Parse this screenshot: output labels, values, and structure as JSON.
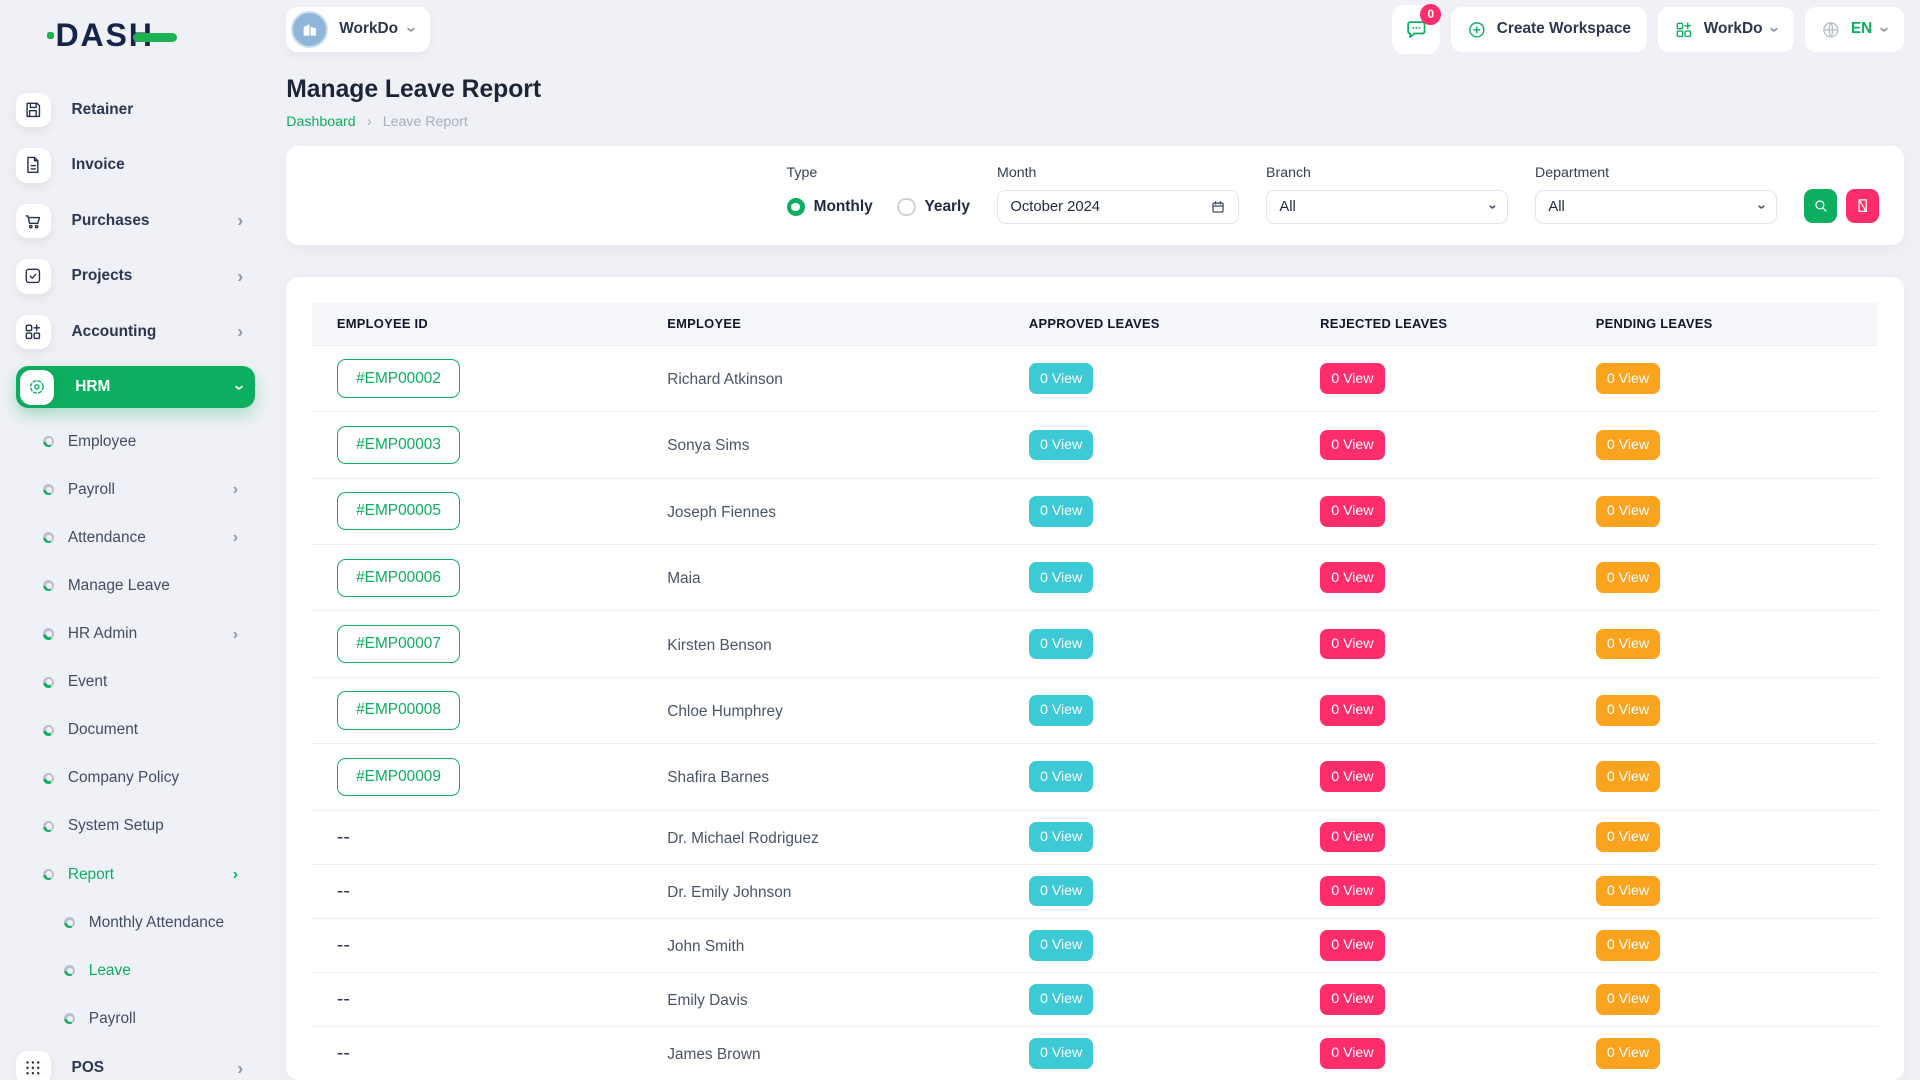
{
  "brand": {
    "logo_text": "DASH"
  },
  "topbar": {
    "workspace_label": "WorkDo",
    "messages_badge": "0",
    "create_workspace_label": "Create Workspace",
    "workdo_label": "WorkDo",
    "language": "EN"
  },
  "sidebar": {
    "main_items": [
      {
        "label": "Retainer",
        "icon": "save-icon",
        "chevron": false,
        "active": false
      },
      {
        "label": "Invoice",
        "icon": "invoice-icon",
        "chevron": false,
        "active": false
      },
      {
        "label": "Purchases",
        "icon": "cart-icon",
        "chevron": true,
        "active": false
      },
      {
        "label": "Projects",
        "icon": "check-square-icon",
        "chevron": true,
        "active": false
      },
      {
        "label": "Accounting",
        "icon": "grid-plus-icon",
        "chevron": true,
        "active": false
      },
      {
        "label": "HRM",
        "icon": "team-icon",
        "chevron": true,
        "chevron_down": true,
        "active": true
      }
    ],
    "hrm_submenu": [
      {
        "label": "Employee",
        "chevron": false,
        "active": false
      },
      {
        "label": "Payroll",
        "chevron": true,
        "active": false
      },
      {
        "label": "Attendance",
        "chevron": true,
        "active": false
      },
      {
        "label": "Manage Leave",
        "chevron": false,
        "active": false
      },
      {
        "label": "HR Admin",
        "chevron": true,
        "active": false
      },
      {
        "label": "Event",
        "chevron": false,
        "active": false
      },
      {
        "label": "Document",
        "chevron": false,
        "active": false
      },
      {
        "label": "Company Policy",
        "chevron": false,
        "active": false
      },
      {
        "label": "System Setup",
        "chevron": false,
        "active": false
      },
      {
        "label": "Report",
        "chevron": true,
        "active": true
      }
    ],
    "report_submenu": [
      {
        "label": "Monthly Attendance",
        "active": false
      },
      {
        "label": "Leave",
        "active": true
      },
      {
        "label": "Payroll",
        "active": false
      }
    ],
    "bottom_items": [
      {
        "label": "POS",
        "icon": "apps-icon",
        "chevron": true,
        "active": false
      }
    ]
  },
  "page": {
    "title": "Manage Leave Report",
    "breadcrumb_home": "Dashboard",
    "breadcrumb_current": "Leave Report"
  },
  "filters": {
    "type_label": "Type",
    "type_options": [
      {
        "label": "Monthly",
        "selected": true
      },
      {
        "label": "Yearly",
        "selected": false
      }
    ],
    "month_label": "Month",
    "month_value": "October 2024",
    "branch_label": "Branch",
    "branch_value": "All",
    "department_label": "Department",
    "department_value": "All"
  },
  "table": {
    "columns": [
      "EMPLOYEE ID",
      "EMPLOYEE",
      "APPROVED LEAVES",
      "REJECTED LEAVES",
      "PENDING LEAVES"
    ],
    "rows": [
      {
        "id": "#EMP00002",
        "id_is_chip": true,
        "name": "Richard Atkinson",
        "approved": "0 View",
        "rejected": "0 View",
        "pending": "0 View"
      },
      {
        "id": "#EMP00003",
        "id_is_chip": true,
        "name": "Sonya Sims",
        "approved": "0 View",
        "rejected": "0 View",
        "pending": "0 View"
      },
      {
        "id": "#EMP00005",
        "id_is_chip": true,
        "name": "Joseph Fiennes",
        "approved": "0 View",
        "rejected": "0 View",
        "pending": "0 View"
      },
      {
        "id": "#EMP00006",
        "id_is_chip": true,
        "name": "Maia",
        "approved": "0 View",
        "rejected": "0 View",
        "pending": "0 View"
      },
      {
        "id": "#EMP00007",
        "id_is_chip": true,
        "name": "Kirsten Benson",
        "approved": "0 View",
        "rejected": "0 View",
        "pending": "0 View"
      },
      {
        "id": "#EMP00008",
        "id_is_chip": true,
        "name": "Chloe Humphrey",
        "approved": "0 View",
        "rejected": "0 View",
        "pending": "0 View"
      },
      {
        "id": "#EMP00009",
        "id_is_chip": true,
        "name": "Shafira Barnes",
        "approved": "0 View",
        "rejected": "0 View",
        "pending": "0 View"
      },
      {
        "id": "--",
        "id_is_chip": false,
        "name": "Dr. Michael Rodriguez",
        "approved": "0 View",
        "rejected": "0 View",
        "pending": "0 View"
      },
      {
        "id": "--",
        "id_is_chip": false,
        "name": "Dr. Emily Johnson",
        "approved": "0 View",
        "rejected": "0 View",
        "pending": "0 View"
      },
      {
        "id": "--",
        "id_is_chip": false,
        "name": "John Smith",
        "approved": "0 View",
        "rejected": "0 View",
        "pending": "0 View"
      },
      {
        "id": "--",
        "id_is_chip": false,
        "name": "Emily Davis",
        "approved": "0 View",
        "rejected": "0 View",
        "pending": "0 View"
      },
      {
        "id": "--",
        "id_is_chip": false,
        "name": "James Brown",
        "approved": "0 View",
        "rejected": "0 View",
        "pending": "0 View"
      }
    ]
  },
  "colors": {
    "primary": "#0caf60",
    "approved": "#3ec9d6",
    "rejected": "#ff2e6b",
    "pending": "#f9a31f"
  }
}
